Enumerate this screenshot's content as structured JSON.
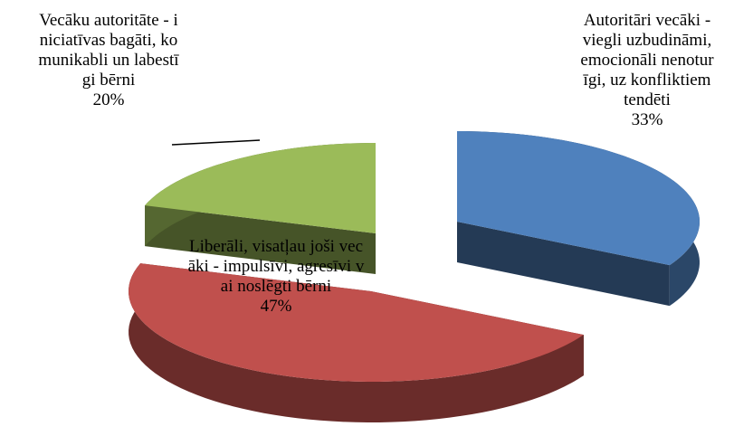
{
  "chart_data": {
    "type": "pie3d",
    "categories": [
      "Autoritāri vecāki - viegli uzbudināmi, emocionāli nenoturīgi, uz konfliktiem tendēti",
      "Liberāli, visatļau joši vecāki - impulsīvi, agresīvi vai noslēgti bērni",
      "Vecāku autoritāte - iniciatīvas bagāti, komunikabli un labestīgi bērni"
    ],
    "values": [
      33,
      47,
      20
    ],
    "value_labels": [
      "33%",
      "47%",
      "20%"
    ],
    "colors": [
      "#4f81bd",
      "#c0504d",
      "#9bbb59"
    ]
  }
}
